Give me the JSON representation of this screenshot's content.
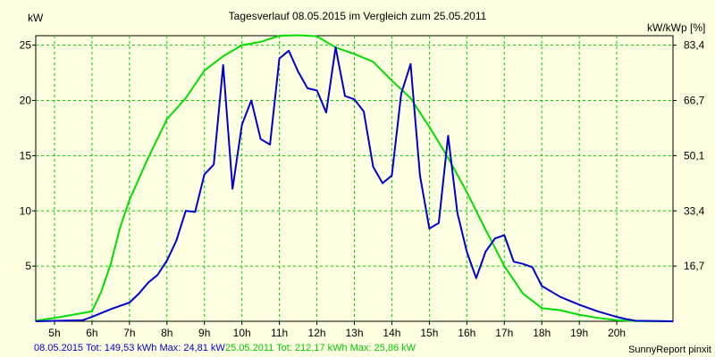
{
  "chart_data": {
    "type": "line",
    "title": "Tagesverlauf 08.05.2015 im Vergleich zum 25.05.2011",
    "ylabel_left": "kW",
    "ylabel_right": "kW/kWp [%]",
    "xlim": [
      4.5,
      21.5
    ],
    "ylim": [
      0,
      25.86
    ],
    "x_ticks": [
      5,
      6,
      7,
      8,
      9,
      10,
      11,
      12,
      13,
      14,
      15,
      16,
      17,
      18,
      19,
      20
    ],
    "x_tick_labels": [
      "5h",
      "6h",
      "7h",
      "8h",
      "9h",
      "10h",
      "11h",
      "12h",
      "13h",
      "14h",
      "15h",
      "16h",
      "17h",
      "18h",
      "19h",
      "20h"
    ],
    "y_ticks_left": [
      5,
      10,
      15,
      20,
      25
    ],
    "y_tick_labels_left": [
      "5",
      "10",
      "15",
      "20",
      "25"
    ],
    "y_tick_labels_right": [
      "16,7",
      "33,4",
      "50,1",
      "66,7",
      "83,4"
    ],
    "grid": true,
    "colors": {
      "background": "#ffffe1",
      "grid": "#00cc00",
      "series_2015": "#0000cc",
      "series_2011": "#00dd00"
    },
    "series": [
      {
        "name": "08.05.2015",
        "color": "#0000cc",
        "x": [
          4.5,
          5.75,
          6.0,
          6.5,
          7.0,
          7.25,
          7.5,
          7.75,
          8.0,
          8.25,
          8.5,
          8.75,
          9.0,
          9.25,
          9.5,
          9.75,
          10.0,
          10.25,
          10.5,
          10.75,
          11.0,
          11.25,
          11.5,
          11.75,
          12.0,
          12.25,
          12.5,
          12.75,
          13.0,
          13.25,
          13.5,
          13.75,
          14.0,
          14.25,
          14.5,
          14.75,
          15.0,
          15.25,
          15.5,
          15.75,
          16.0,
          16.25,
          16.5,
          16.75,
          17.0,
          17.25,
          17.5,
          17.75,
          18.0,
          18.5,
          19.0,
          19.5,
          20.0,
          20.25,
          20.5,
          21.5
        ],
        "y": [
          0,
          0.1,
          0.4,
          1.1,
          1.7,
          2.5,
          3.5,
          4.2,
          5.5,
          7.3,
          10.0,
          9.9,
          13.3,
          14.2,
          23.2,
          12.0,
          17.8,
          20.0,
          16.5,
          16.0,
          23.8,
          24.5,
          22.6,
          21.1,
          20.9,
          18.9,
          24.81,
          20.4,
          20.1,
          19.0,
          14.0,
          12.5,
          13.2,
          20.6,
          23.3,
          13.2,
          8.4,
          8.9,
          16.8,
          9.8,
          6.3,
          3.9,
          6.3,
          7.5,
          7.8,
          5.4,
          5.2,
          4.9,
          3.2,
          2.2,
          1.5,
          0.9,
          0.4,
          0.2,
          0.05,
          0
        ]
      },
      {
        "name": "25.05.2011",
        "color": "#00dd00",
        "x": [
          4.5,
          5.0,
          5.5,
          6.0,
          6.25,
          6.5,
          6.75,
          7.0,
          7.5,
          8.0,
          8.5,
          9.0,
          9.5,
          10.0,
          10.5,
          11.0,
          11.5,
          11.75,
          12.0,
          12.5,
          13.0,
          13.5,
          14.0,
          14.5,
          15.0,
          15.5,
          16.0,
          16.5,
          17.0,
          17.5,
          18.0,
          18.5,
          19.0,
          19.5,
          20.0,
          20.5,
          21.5
        ],
        "y": [
          0.05,
          0.3,
          0.6,
          0.9,
          2.7,
          5.2,
          8.5,
          11.0,
          14.8,
          18.3,
          20.2,
          22.7,
          24.0,
          25.0,
          25.3,
          25.85,
          25.9,
          25.86,
          25.8,
          24.8,
          24.2,
          23.5,
          21.8,
          20.2,
          17.6,
          14.8,
          11.7,
          8.3,
          5.0,
          2.5,
          1.2,
          1.0,
          0.6,
          0.3,
          0.1,
          0.02,
          0
        ]
      }
    ]
  },
  "footer": {
    "legend_2015": "08.05.2015 Tot: 149,53 kWh Max: 24,81 kW",
    "legend_2011": "25.05.2011 Tot: 212,17 kWh Max: 25,86 kW",
    "credit": "SunnyReport pinxit"
  }
}
